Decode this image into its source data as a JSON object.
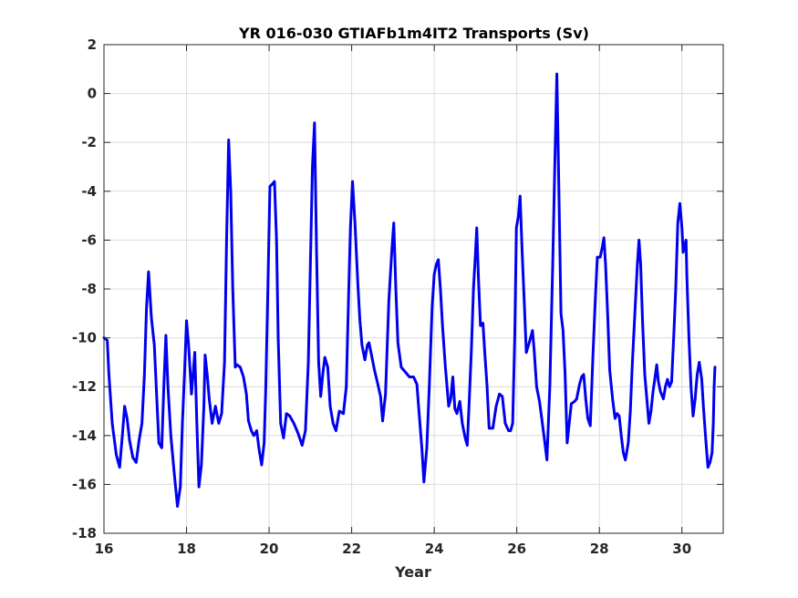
{
  "chart_data": {
    "type": "line",
    "title": "YR 016-030 GTIAFb1m4IT2 Transports (Sv)",
    "xlabel": "Year",
    "ylabel": "",
    "xlim": [
      16,
      31
    ],
    "ylim": [
      -18,
      2
    ],
    "xticks": [
      16,
      18,
      20,
      22,
      24,
      26,
      28,
      30
    ],
    "yticks": [
      2,
      0,
      -2,
      -4,
      -6,
      -8,
      -10,
      -12,
      -14,
      -16,
      -18
    ],
    "grid": true,
    "legend": "none",
    "series": [
      {
        "color": "#0000ee",
        "points": [
          [
            16.0,
            -10.0
          ],
          [
            16.08,
            -10.1
          ],
          [
            16.12,
            -11.5
          ],
          [
            16.2,
            -13.5
          ],
          [
            16.3,
            -14.8
          ],
          [
            16.38,
            -15.3
          ],
          [
            16.45,
            -13.9
          ],
          [
            16.5,
            -12.8
          ],
          [
            16.56,
            -13.3
          ],
          [
            16.62,
            -14.2
          ],
          [
            16.7,
            -14.9
          ],
          [
            16.78,
            -15.1
          ],
          [
            16.85,
            -14.2
          ],
          [
            16.92,
            -13.5
          ],
          [
            16.98,
            -11.5
          ],
          [
            17.03,
            -8.8
          ],
          [
            17.08,
            -7.3
          ],
          [
            17.15,
            -9.2
          ],
          [
            17.22,
            -10.3
          ],
          [
            17.28,
            -12.5
          ],
          [
            17.33,
            -14.3
          ],
          [
            17.4,
            -14.5
          ],
          [
            17.45,
            -12.0
          ],
          [
            17.5,
            -9.9
          ],
          [
            17.55,
            -12.0
          ],
          [
            17.62,
            -14.0
          ],
          [
            17.7,
            -15.5
          ],
          [
            17.78,
            -16.9
          ],
          [
            17.85,
            -16.1
          ],
          [
            17.9,
            -13.5
          ],
          [
            17.95,
            -11.5
          ],
          [
            18.0,
            -9.3
          ],
          [
            18.05,
            -10.3
          ],
          [
            18.12,
            -12.3
          ],
          [
            18.2,
            -10.6
          ],
          [
            18.25,
            -13.5
          ],
          [
            18.3,
            -16.1
          ],
          [
            18.36,
            -15.2
          ],
          [
            18.42,
            -12.8
          ],
          [
            18.45,
            -10.7
          ],
          [
            18.5,
            -11.5
          ],
          [
            18.55,
            -12.5
          ],
          [
            18.62,
            -13.5
          ],
          [
            18.7,
            -12.8
          ],
          [
            18.78,
            -13.5
          ],
          [
            18.85,
            -13.1
          ],
          [
            18.92,
            -11.0
          ],
          [
            18.97,
            -6.0
          ],
          [
            19.02,
            -1.9
          ],
          [
            19.07,
            -4.0
          ],
          [
            19.12,
            -8.0
          ],
          [
            19.18,
            -11.2
          ],
          [
            19.22,
            -11.1
          ],
          [
            19.3,
            -11.2
          ],
          [
            19.38,
            -11.6
          ],
          [
            19.45,
            -12.3
          ],
          [
            19.5,
            -13.4
          ],
          [
            19.57,
            -13.8
          ],
          [
            19.63,
            -14.0
          ],
          [
            19.7,
            -13.8
          ],
          [
            19.76,
            -14.6
          ],
          [
            19.82,
            -15.2
          ],
          [
            19.88,
            -14.3
          ],
          [
            19.92,
            -12.0
          ],
          [
            19.97,
            -8.0
          ],
          [
            20.02,
            -3.8
          ],
          [
            20.08,
            -3.7
          ],
          [
            20.13,
            -3.6
          ],
          [
            20.18,
            -6.0
          ],
          [
            20.22,
            -10.0
          ],
          [
            20.28,
            -13.5
          ],
          [
            20.35,
            -14.1
          ],
          [
            20.42,
            -13.1
          ],
          [
            20.5,
            -13.2
          ],
          [
            20.6,
            -13.5
          ],
          [
            20.7,
            -13.9
          ],
          [
            20.8,
            -14.4
          ],
          [
            20.88,
            -13.8
          ],
          [
            20.95,
            -11.0
          ],
          [
            21.0,
            -7.0
          ],
          [
            21.05,
            -3.0
          ],
          [
            21.1,
            -1.2
          ],
          [
            21.15,
            -6.5
          ],
          [
            21.2,
            -11.0
          ],
          [
            21.25,
            -12.4
          ],
          [
            21.3,
            -11.5
          ],
          [
            21.35,
            -10.8
          ],
          [
            21.42,
            -11.2
          ],
          [
            21.48,
            -12.8
          ],
          [
            21.55,
            -13.5
          ],
          [
            21.62,
            -13.8
          ],
          [
            21.7,
            -13.0
          ],
          [
            21.8,
            -13.1
          ],
          [
            21.87,
            -12.0
          ],
          [
            21.93,
            -8.0
          ],
          [
            21.97,
            -5.5
          ],
          [
            22.02,
            -3.6
          ],
          [
            22.08,
            -5.3
          ],
          [
            22.15,
            -7.8
          ],
          [
            22.2,
            -9.3
          ],
          [
            22.25,
            -10.3
          ],
          [
            22.32,
            -10.9
          ],
          [
            22.38,
            -10.3
          ],
          [
            22.42,
            -10.2
          ],
          [
            22.48,
            -10.7
          ],
          [
            22.55,
            -11.3
          ],
          [
            22.62,
            -11.8
          ],
          [
            22.7,
            -12.4
          ],
          [
            22.75,
            -13.4
          ],
          [
            22.82,
            -12.3
          ],
          [
            22.9,
            -8.5
          ],
          [
            22.97,
            -6.5
          ],
          [
            23.02,
            -5.3
          ],
          [
            23.07,
            -8.0
          ],
          [
            23.12,
            -10.2
          ],
          [
            23.2,
            -11.2
          ],
          [
            23.3,
            -11.4
          ],
          [
            23.4,
            -11.6
          ],
          [
            23.5,
            -11.6
          ],
          [
            23.58,
            -11.9
          ],
          [
            23.63,
            -13.0
          ],
          [
            23.7,
            -14.5
          ],
          [
            23.75,
            -15.9
          ],
          [
            23.82,
            -14.5
          ],
          [
            23.88,
            -12.0
          ],
          [
            23.95,
            -8.7
          ],
          [
            24.0,
            -7.4
          ],
          [
            24.05,
            -7.0
          ],
          [
            24.1,
            -6.8
          ],
          [
            24.15,
            -8.0
          ],
          [
            24.2,
            -9.5
          ],
          [
            24.27,
            -11.2
          ],
          [
            24.35,
            -12.8
          ],
          [
            24.4,
            -12.5
          ],
          [
            24.45,
            -11.6
          ],
          [
            24.5,
            -12.9
          ],
          [
            24.55,
            -13.1
          ],
          [
            24.62,
            -12.6
          ],
          [
            24.68,
            -13.5
          ],
          [
            24.75,
            -14.1
          ],
          [
            24.8,
            -14.4
          ],
          [
            24.85,
            -12.5
          ],
          [
            24.9,
            -10.5
          ],
          [
            24.95,
            -8.0
          ],
          [
            25.0,
            -6.5
          ],
          [
            25.03,
            -5.5
          ],
          [
            25.07,
            -7.5
          ],
          [
            25.12,
            -9.5
          ],
          [
            25.18,
            -9.4
          ],
          [
            25.22,
            -10.5
          ],
          [
            25.28,
            -12.0
          ],
          [
            25.33,
            -13.7
          ],
          [
            25.42,
            -13.7
          ],
          [
            25.5,
            -12.8
          ],
          [
            25.58,
            -12.3
          ],
          [
            25.65,
            -12.4
          ],
          [
            25.72,
            -13.5
          ],
          [
            25.8,
            -13.8
          ],
          [
            25.85,
            -13.8
          ],
          [
            25.9,
            -13.5
          ],
          [
            25.95,
            -10.0
          ],
          [
            25.99,
            -5.5
          ],
          [
            26.04,
            -5.0
          ],
          [
            26.08,
            -4.2
          ],
          [
            26.13,
            -6.5
          ],
          [
            26.18,
            -8.5
          ],
          [
            26.23,
            -10.6
          ],
          [
            26.3,
            -10.2
          ],
          [
            26.35,
            -9.9
          ],
          [
            26.38,
            -9.7
          ],
          [
            26.42,
            -10.5
          ],
          [
            26.48,
            -12.0
          ],
          [
            26.55,
            -12.6
          ],
          [
            26.62,
            -13.5
          ],
          [
            26.68,
            -14.3
          ],
          [
            26.73,
            -15.0
          ],
          [
            26.8,
            -12.0
          ],
          [
            26.87,
            -7.0
          ],
          [
            26.92,
            -3.0
          ],
          [
            26.97,
            0.8
          ],
          [
            27.02,
            -4.0
          ],
          [
            27.07,
            -9.0
          ],
          [
            27.12,
            -9.7
          ],
          [
            27.17,
            -11.5
          ],
          [
            27.22,
            -14.3
          ],
          [
            27.27,
            -13.5
          ],
          [
            27.32,
            -12.7
          ],
          [
            27.4,
            -12.6
          ],
          [
            27.45,
            -12.5
          ],
          [
            27.52,
            -11.9
          ],
          [
            27.57,
            -11.6
          ],
          [
            27.62,
            -11.5
          ],
          [
            27.67,
            -12.5
          ],
          [
            27.72,
            -13.3
          ],
          [
            27.78,
            -13.6
          ],
          [
            27.85,
            -10.5
          ],
          [
            27.9,
            -8.5
          ],
          [
            27.95,
            -6.7
          ],
          [
            28.02,
            -6.7
          ],
          [
            28.07,
            -6.3
          ],
          [
            28.11,
            -5.9
          ],
          [
            28.15,
            -7.0
          ],
          [
            28.2,
            -9.0
          ],
          [
            28.25,
            -11.3
          ],
          [
            28.32,
            -12.5
          ],
          [
            28.38,
            -13.3
          ],
          [
            28.43,
            -13.1
          ],
          [
            28.48,
            -13.2
          ],
          [
            28.53,
            -14.0
          ],
          [
            28.58,
            -14.7
          ],
          [
            28.63,
            -15.0
          ],
          [
            28.7,
            -14.3
          ],
          [
            28.75,
            -13.0
          ],
          [
            28.8,
            -11.0
          ],
          [
            28.86,
            -9.0
          ],
          [
            28.92,
            -7.0
          ],
          [
            28.96,
            -6.0
          ],
          [
            29.0,
            -7.0
          ],
          [
            29.05,
            -9.5
          ],
          [
            29.1,
            -11.5
          ],
          [
            29.15,
            -12.5
          ],
          [
            29.2,
            -13.5
          ],
          [
            29.25,
            -13.0
          ],
          [
            29.3,
            -12.2
          ],
          [
            29.35,
            -11.6
          ],
          [
            29.39,
            -11.1
          ],
          [
            29.43,
            -11.8
          ],
          [
            29.48,
            -12.2
          ],
          [
            29.55,
            -12.5
          ],
          [
            29.6,
            -12.0
          ],
          [
            29.65,
            -11.7
          ],
          [
            29.7,
            -12.0
          ],
          [
            29.75,
            -11.8
          ],
          [
            29.8,
            -10.0
          ],
          [
            29.85,
            -8.0
          ],
          [
            29.9,
            -5.3
          ],
          [
            29.95,
            -4.5
          ],
          [
            30.0,
            -5.5
          ],
          [
            30.03,
            -6.5
          ],
          [
            30.07,
            -6.2
          ],
          [
            30.1,
            -6.0
          ],
          [
            30.12,
            -7.5
          ],
          [
            30.17,
            -10.0
          ],
          [
            30.22,
            -12.0
          ],
          [
            30.27,
            -13.2
          ],
          [
            30.32,
            -12.5
          ],
          [
            30.37,
            -11.5
          ],
          [
            30.42,
            -11.0
          ],
          [
            30.48,
            -11.7
          ],
          [
            30.52,
            -12.8
          ],
          [
            30.57,
            -14.0
          ],
          [
            30.63,
            -15.3
          ],
          [
            30.68,
            -15.1
          ],
          [
            30.73,
            -14.7
          ],
          [
            30.76,
            -13.5
          ],
          [
            30.78,
            -12.0
          ],
          [
            30.8,
            -11.2
          ]
        ]
      }
    ]
  }
}
